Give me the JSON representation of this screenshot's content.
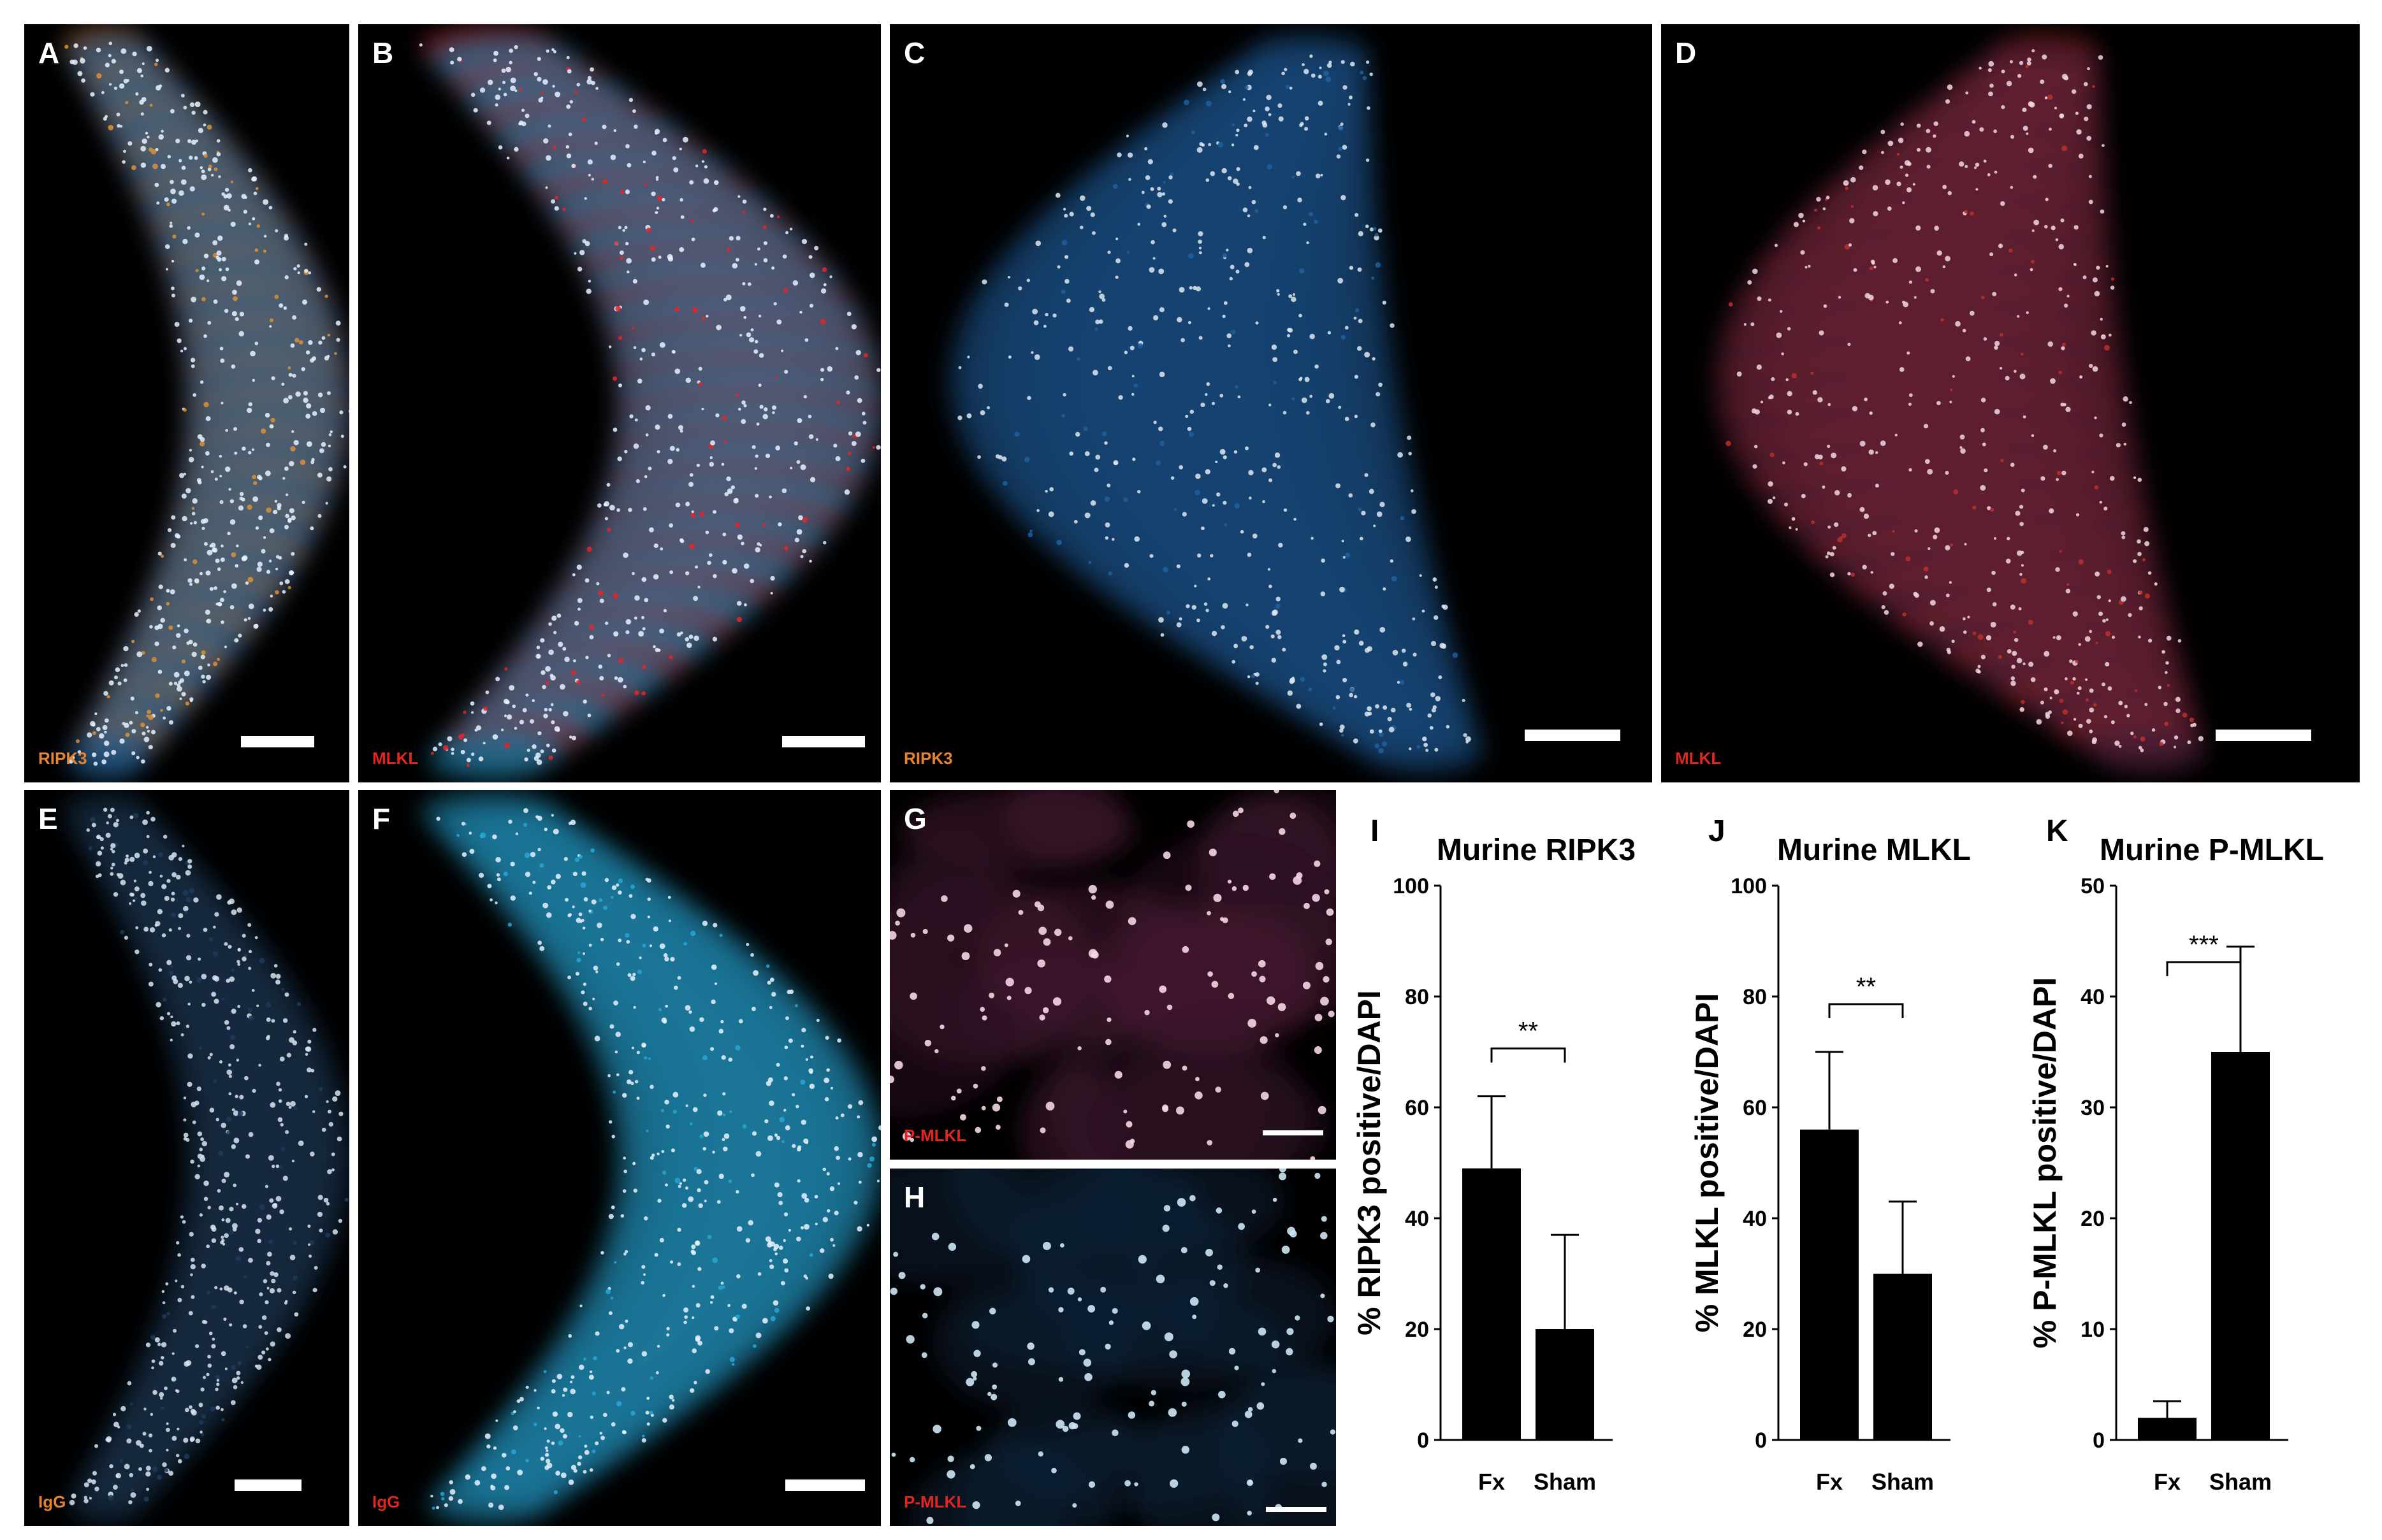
{
  "figure": {
    "panels": [
      {
        "id": "A",
        "stain": "RIPK3",
        "stain_color": "#e8832a",
        "tissue": "crescent",
        "channels": [
          "#2f7fc8",
          "#d9913a",
          "#e6f2ff"
        ]
      },
      {
        "id": "B",
        "stain": "MLKL",
        "stain_color": "#e0261f",
        "tissue": "crescent",
        "channels": [
          "#2aa4d8",
          "#e3262a",
          "#e6f2ff"
        ]
      },
      {
        "id": "C",
        "stain": "RIPK3",
        "stain_color": "#e8832a",
        "tissue": "wing",
        "channels": [
          "#1f5f9e",
          "#1f5f9e",
          "#dde8f0"
        ]
      },
      {
        "id": "D",
        "stain": "MLKL",
        "stain_color": "#e0261f",
        "tissue": "wing",
        "channels": [
          "#6a2a50",
          "#b8302c",
          "#f0d8e0"
        ]
      },
      {
        "id": "E",
        "stain": "IgG",
        "stain_color": "#e8832a",
        "tissue": "crescent",
        "channels": [
          "#1d3a5a",
          "#1d3a5a",
          "#d8e4ee"
        ]
      },
      {
        "id": "F",
        "stain": "IgG",
        "stain_color": "#e0261f",
        "tissue": "crescent",
        "channels": [
          "#27a6d6",
          "#27a6d6",
          "#e6f2ff"
        ]
      },
      {
        "id": "G",
        "stain": "P-MLKL",
        "stain_color": "#e0261f",
        "tissue": "patch",
        "channels": [
          "#5a2040",
          "#3a1a30",
          "#f4d6e4"
        ]
      },
      {
        "id": "H",
        "stain": "P-MLKL",
        "stain_color": "#e0261f",
        "tissue": "patch",
        "channels": [
          "#0e2a45",
          "#0e2a45",
          "#cde6f4"
        ]
      }
    ]
  },
  "chart_data": [
    {
      "letter": "I",
      "type": "bar",
      "title": "Murine RIPK3",
      "ylabel": "% RIPK3 positive/DAPI",
      "categories": [
        "Fx",
        "Sham"
      ],
      "values": [
        49,
        20
      ],
      "errors": [
        13,
        17
      ],
      "ylim": [
        0,
        100
      ],
      "yticks": [
        0,
        20,
        40,
        60,
        80,
        100
      ],
      "significance": "**"
    },
    {
      "letter": "J",
      "type": "bar",
      "title": "Murine MLKL",
      "ylabel": "% MLKL positive/DAPI",
      "categories": [
        "Fx",
        "Sham"
      ],
      "values": [
        56,
        30
      ],
      "errors": [
        14,
        13
      ],
      "ylim": [
        0,
        100
      ],
      "yticks": [
        0,
        20,
        40,
        60,
        80,
        100
      ],
      "significance": "**"
    },
    {
      "letter": "K",
      "type": "bar",
      "title": "Murine P-MLKL",
      "ylabel": "% P-MLKL positive/DAPI",
      "categories": [
        "Fx",
        "Sham"
      ],
      "values": [
        2,
        35
      ],
      "errors": [
        1.5,
        9.5
      ],
      "ylim": [
        0,
        50
      ],
      "yticks": [
        0,
        10,
        20,
        30,
        40,
        50
      ],
      "significance": "***"
    }
  ]
}
